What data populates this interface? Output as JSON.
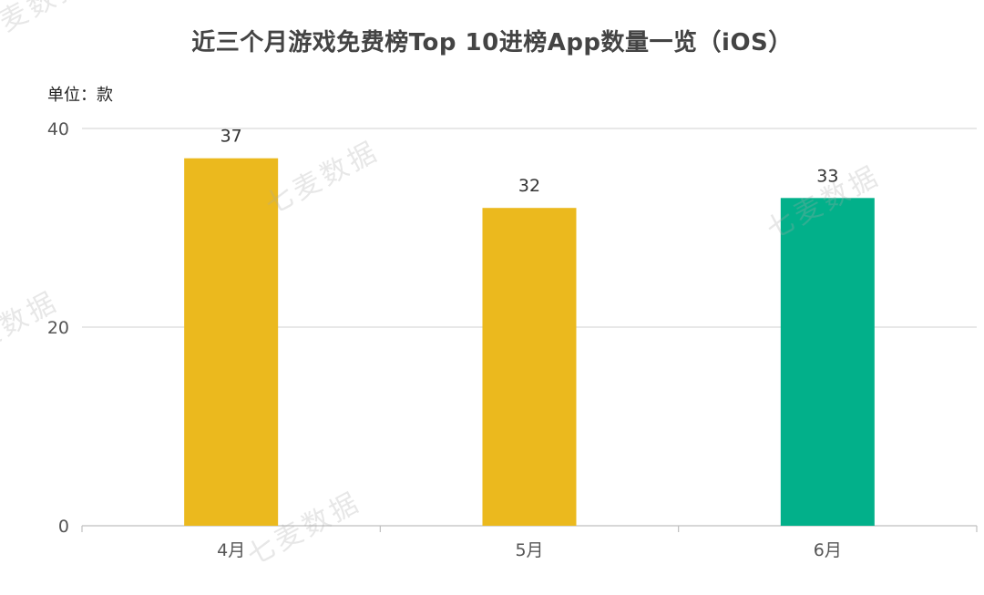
{
  "chart_data": {
    "type": "bar",
    "title": "近三个月游戏免费榜Top 10进榜App数量一览（iOS）",
    "unit_label": "单位：款",
    "categories": [
      "4月",
      "5月",
      "6月"
    ],
    "values": [
      37,
      32,
      33
    ],
    "bar_colors": [
      "#EBB91E",
      "#EBB91E",
      "#02B08A"
    ],
    "ylim": [
      0,
      40
    ],
    "yticks": [
      0,
      20,
      40
    ],
    "gridlines": true,
    "data_labels": true
  },
  "colors": {
    "gold": "#EBB91E",
    "green": "#02B08A",
    "grid": "#D9D9D9",
    "axis": "#BFBFBF"
  },
  "watermark": "七麦数据"
}
